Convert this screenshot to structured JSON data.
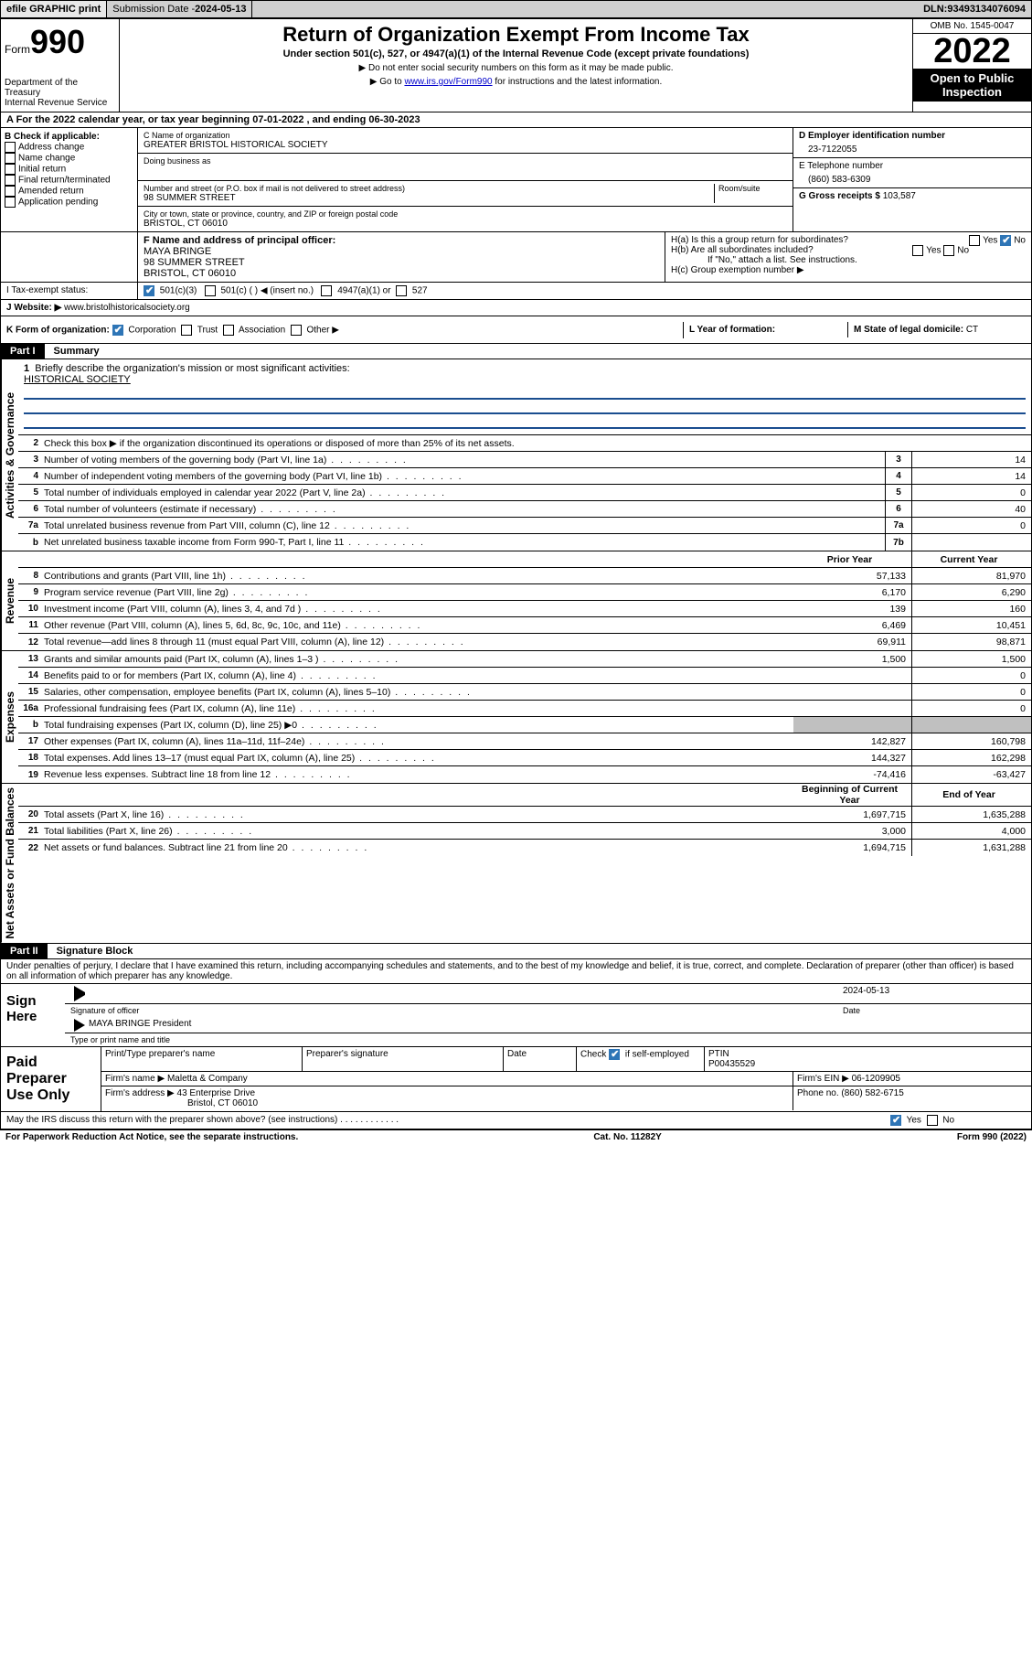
{
  "topbar": {
    "efile": "efile GRAPHIC print",
    "submission_label": "Submission Date - ",
    "submission_date": "2024-05-13",
    "dln_label": "DLN: ",
    "dln": "93493134076094"
  },
  "header": {
    "form_word": "Form",
    "form_num": "990",
    "dept": "Department of the Treasury\nInternal Revenue Service",
    "title": "Return of Organization Exempt From Income Tax",
    "subtitle": "Under section 501(c), 527, or 4947(a)(1) of the Internal Revenue Code (except private foundations)",
    "note1": "▶ Do not enter social security numbers on this form as it may be made public.",
    "note2_pre": "▶ Go to ",
    "note2_link": "www.irs.gov/Form990",
    "note2_post": " for instructions and the latest information.",
    "omb": "OMB No. 1545-0047",
    "year": "2022",
    "open": "Open to Public Inspection"
  },
  "rowA": {
    "text": "A For the 2022 calendar year, or tax year beginning 07-01-2022    , and ending 06-30-2023"
  },
  "colB": {
    "label": "B Check if applicable:",
    "items": [
      "Address change",
      "Name change",
      "Initial return",
      "Final return/terminated",
      "Amended return",
      "Application pending"
    ]
  },
  "colC": {
    "name_label": "C Name of organization",
    "name": "GREATER BRISTOL HISTORICAL SOCIETY",
    "dba_label": "Doing business as",
    "dba": "",
    "street_label": "Number and street (or P.O. box if mail is not delivered to street address)",
    "room_label": "Room/suite",
    "street": "98 SUMMER STREET",
    "city_label": "City or town, state or province, country, and ZIP or foreign postal code",
    "city": "BRISTOL, CT  06010"
  },
  "colD": {
    "ein_label": "D Employer identification number",
    "ein": "23-7122055",
    "phone_label": "E Telephone number",
    "phone": "(860) 583-6309",
    "gross_label": "G Gross receipts $ ",
    "gross": "103,587"
  },
  "rowF": {
    "label": "F Name and address of principal officer:",
    "name": "MAYA BRINGE",
    "addr1": "98 SUMMER STREET",
    "addr2": "BRISTOL, CT  06010"
  },
  "rowH": {
    "a": "H(a)  Is this a group return for subordinates?",
    "b": "H(b)  Are all subordinates included?",
    "b_note": "If \"No,\" attach a list. See instructions.",
    "c": "H(c)  Group exemption number ▶",
    "yes": "Yes",
    "no": "No"
  },
  "rowI": {
    "label": "I    Tax-exempt status:",
    "opts": [
      "501(c)(3)",
      "501(c) (  ) ◀ (insert no.)",
      "4947(a)(1) or",
      "527"
    ]
  },
  "rowJ": {
    "label": "J   Website: ▶ ",
    "val": "www.bristolhistoricalsociety.org"
  },
  "rowK": {
    "label": "K Form of organization:",
    "opts": [
      "Corporation",
      "Trust",
      "Association",
      "Other ▶"
    ]
  },
  "rowL": {
    "label": "L Year of formation:",
    "val": ""
  },
  "rowM": {
    "label": "M State of legal domicile: ",
    "val": "CT"
  },
  "part1": {
    "title": "Part I",
    "name": "Summary",
    "q1": "Briefly describe the organization's mission or most significant activities:",
    "mission": "HISTORICAL SOCIETY",
    "q2": "Check this box ▶       if the organization discontinued its operations or disposed of more than 25% of its net assets.",
    "vert_activities": "Activities & Governance",
    "vert_revenue": "Revenue",
    "vert_expenses": "Expenses",
    "vert_netassets": "Net Assets or Fund Balances",
    "prior_year": "Prior Year",
    "current_year": "Current Year",
    "begin_year": "Beginning of Current Year",
    "end_year": "End of Year",
    "lines_gov": [
      {
        "n": "3",
        "d": "Number of voting members of the governing body (Part VI, line 1a)",
        "box": "3",
        "v": "14"
      },
      {
        "n": "4",
        "d": "Number of independent voting members of the governing body (Part VI, line 1b)",
        "box": "4",
        "v": "14"
      },
      {
        "n": "5",
        "d": "Total number of individuals employed in calendar year 2022 (Part V, line 2a)",
        "box": "5",
        "v": "0"
      },
      {
        "n": "6",
        "d": "Total number of volunteers (estimate if necessary)",
        "box": "6",
        "v": "40"
      },
      {
        "n": "7a",
        "d": "Total unrelated business revenue from Part VIII, column (C), line 12",
        "box": "7a",
        "v": "0"
      },
      {
        "n": "b",
        "d": "Net unrelated business taxable income from Form 990-T, Part I, line 11",
        "box": "7b",
        "v": ""
      }
    ],
    "lines_rev": [
      {
        "n": "8",
        "d": "Contributions and grants (Part VIII, line 1h)",
        "p": "57,133",
        "c": "81,970"
      },
      {
        "n": "9",
        "d": "Program service revenue (Part VIII, line 2g)",
        "p": "6,170",
        "c": "6,290"
      },
      {
        "n": "10",
        "d": "Investment income (Part VIII, column (A), lines 3, 4, and 7d )",
        "p": "139",
        "c": "160"
      },
      {
        "n": "11",
        "d": "Other revenue (Part VIII, column (A), lines 5, 6d, 8c, 9c, 10c, and 11e)",
        "p": "6,469",
        "c": "10,451"
      },
      {
        "n": "12",
        "d": "Total revenue—add lines 8 through 11 (must equal Part VIII, column (A), line 12)",
        "p": "69,911",
        "c": "98,871"
      }
    ],
    "lines_exp": [
      {
        "n": "13",
        "d": "Grants and similar amounts paid (Part IX, column (A), lines 1–3 )",
        "p": "1,500",
        "c": "1,500"
      },
      {
        "n": "14",
        "d": "Benefits paid to or for members (Part IX, column (A), line 4)",
        "p": "",
        "c": "0"
      },
      {
        "n": "15",
        "d": "Salaries, other compensation, employee benefits (Part IX, column (A), lines 5–10)",
        "p": "",
        "c": "0"
      },
      {
        "n": "16a",
        "d": "Professional fundraising fees (Part IX, column (A), line 11e)",
        "p": "",
        "c": "0"
      },
      {
        "n": "b",
        "d": "Total fundraising expenses (Part IX, column (D), line 25) ▶0",
        "p": "GRAY",
        "c": "GRAY"
      },
      {
        "n": "17",
        "d": "Other expenses (Part IX, column (A), lines 11a–11d, 11f–24e)",
        "p": "142,827",
        "c": "160,798"
      },
      {
        "n": "18",
        "d": "Total expenses. Add lines 13–17 (must equal Part IX, column (A), line 25)",
        "p": "144,327",
        "c": "162,298"
      },
      {
        "n": "19",
        "d": "Revenue less expenses. Subtract line 18 from line 12",
        "p": "-74,416",
        "c": "-63,427"
      }
    ],
    "lines_net": [
      {
        "n": "20",
        "d": "Total assets (Part X, line 16)",
        "p": "1,697,715",
        "c": "1,635,288"
      },
      {
        "n": "21",
        "d": "Total liabilities (Part X, line 26)",
        "p": "3,000",
        "c": "4,000"
      },
      {
        "n": "22",
        "d": "Net assets or fund balances. Subtract line 21 from line 20",
        "p": "1,694,715",
        "c": "1,631,288"
      }
    ]
  },
  "part2": {
    "title": "Part II",
    "name": "Signature Block",
    "penalty": "Under penalties of perjury, I declare that I have examined this return, including accompanying schedules and statements, and to the best of my knowledge and belief, it is true, correct, and complete. Declaration of preparer (other than officer) is based on all information of which preparer has any knowledge.",
    "sign_here": "Sign Here",
    "sig_officer": "Signature of officer",
    "sig_date_label": "Date",
    "sig_date": "2024-05-13",
    "officer_name": "MAYA BRINGE  President",
    "officer_sub": "Type or print name and title",
    "paid": "Paid Preparer Use Only",
    "pt_name": "Print/Type preparer's name",
    "pt_sig": "Preparer's signature",
    "pt_date": "Date",
    "pt_check": "Check         if self-employed",
    "ptin_label": "PTIN",
    "ptin": "P00435529",
    "firm_name_label": "Firm's name     ▶ ",
    "firm_name": "Maletta & Company",
    "firm_ein_label": "Firm's EIN ▶ ",
    "firm_ein": "06-1209905",
    "firm_addr_label": "Firm's address ▶ ",
    "firm_addr1": "43 Enterprise Drive",
    "firm_addr2": "Bristol, CT  06010",
    "firm_phone_label": "Phone no. ",
    "firm_phone": "(860) 582-6715",
    "discuss": "May the IRS discuss this return with the preparer shown above? (see instructions)"
  },
  "footer": {
    "left": "For Paperwork Reduction Act Notice, see the separate instructions.",
    "mid": "Cat. No. 11282Y",
    "right": "Form 990 (2022)"
  }
}
